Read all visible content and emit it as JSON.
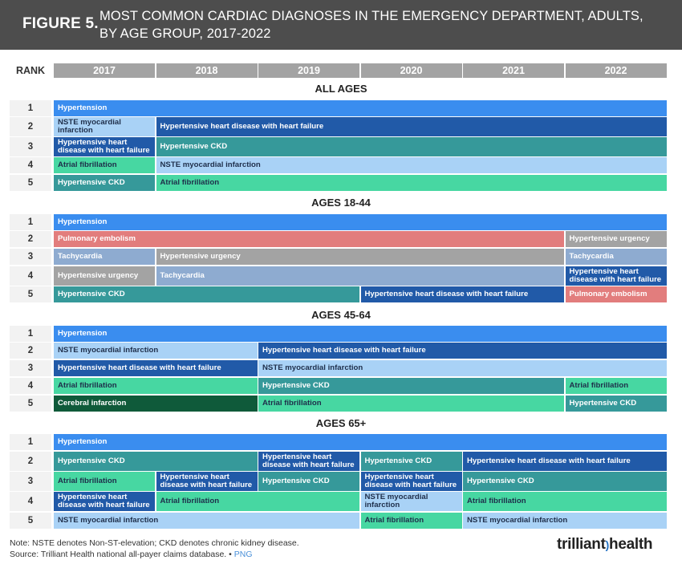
{
  "header": {
    "figure_label": "FIGURE 5.",
    "title": "MOST COMMON CARDIAC DIAGNOSES IN THE EMERGENCY DEPARTMENT, ADULTS, BY AGE GROUP, 2017-2022"
  },
  "rank_label": "RANK",
  "colors": {
    "Hypertension": "#3a8def",
    "Hypertensive heart disease with heart failure": "#215aa8",
    "Hypertensive CKD": "#36999a",
    "Atrial fibrillation": "#47d7a2",
    "NSTE myocardial infarction": "#a9d2f6",
    "Pulmonary embolism": "#e27d7d",
    "Hypertensive urgency": "#a3a3a3",
    "Tachycardia": "#8eabd0",
    "Cerebral infarction": "#0f5a3a"
  },
  "dark_text_labels": [
    "Atrial fibrillation",
    "NSTE myocardial infarction"
  ],
  "chart_data": {
    "type": "table",
    "years": [
      "2017",
      "2018",
      "2019",
      "2020",
      "2021",
      "2022"
    ],
    "sections": [
      {
        "title": "ALL AGES",
        "rows": [
          {
            "rank": "1",
            "segments": [
              {
                "label": "Hypertension",
                "start": 0,
                "span": 6
              }
            ]
          },
          {
            "rank": "2",
            "segments": [
              {
                "label": "NSTE myocardial infarction",
                "start": 0,
                "span": 1
              },
              {
                "label": "Hypertensive heart disease with heart failure",
                "start": 1,
                "span": 5
              }
            ]
          },
          {
            "rank": "3",
            "segments": [
              {
                "label": "Hypertensive heart disease with heart failure",
                "start": 0,
                "span": 1
              },
              {
                "label": "Hypertensive CKD",
                "start": 1,
                "span": 5
              }
            ]
          },
          {
            "rank": "4",
            "segments": [
              {
                "label": "Atrial fibrillation",
                "start": 0,
                "span": 1
              },
              {
                "label": "NSTE myocardial infarction",
                "start": 1,
                "span": 5
              }
            ]
          },
          {
            "rank": "5",
            "segments": [
              {
                "label": "Hypertensive CKD",
                "start": 0,
                "span": 1
              },
              {
                "label": "Atrial fibrillation",
                "start": 1,
                "span": 5
              }
            ]
          }
        ]
      },
      {
        "title": "AGES 18-44",
        "rows": [
          {
            "rank": "1",
            "segments": [
              {
                "label": "Hypertension",
                "start": 0,
                "span": 6
              }
            ]
          },
          {
            "rank": "2",
            "segments": [
              {
                "label": "Pulmonary embolism",
                "start": 0,
                "span": 5
              },
              {
                "label": "Hypertensive urgency",
                "start": 5,
                "span": 1
              }
            ]
          },
          {
            "rank": "3",
            "segments": [
              {
                "label": "Tachycardia",
                "start": 0,
                "span": 1
              },
              {
                "label": "Hypertensive urgency",
                "start": 1,
                "span": 4
              },
              {
                "label": "Tachycardia",
                "start": 5,
                "span": 1
              }
            ]
          },
          {
            "rank": "4",
            "segments": [
              {
                "label": "Hypertensive urgency",
                "start": 0,
                "span": 1
              },
              {
                "label": "Tachycardia",
                "start": 1,
                "span": 4
              },
              {
                "label": "Hypertensive heart disease with heart failure",
                "start": 5,
                "span": 1
              }
            ]
          },
          {
            "rank": "5",
            "segments": [
              {
                "label": "Hypertensive CKD",
                "start": 0,
                "span": 3
              },
              {
                "label": "Hypertensive heart disease with heart failure",
                "start": 3,
                "span": 2
              },
              {
                "label": "Pulmonary embolism",
                "start": 5,
                "span": 1
              }
            ]
          }
        ]
      },
      {
        "title": "AGES 45-64",
        "rows": [
          {
            "rank": "1",
            "segments": [
              {
                "label": "Hypertension",
                "start": 0,
                "span": 6
              }
            ]
          },
          {
            "rank": "2",
            "segments": [
              {
                "label": "NSTE myocardial infarction",
                "start": 0,
                "span": 2
              },
              {
                "label": "Hypertensive heart disease with heart failure",
                "start": 2,
                "span": 4
              }
            ]
          },
          {
            "rank": "3",
            "segments": [
              {
                "label": "Hypertensive heart disease with heart failure",
                "start": 0,
                "span": 2
              },
              {
                "label": "NSTE myocardial infarction",
                "start": 2,
                "span": 4
              }
            ]
          },
          {
            "rank": "4",
            "segments": [
              {
                "label": "Atrial fibrillation",
                "start": 0,
                "span": 2
              },
              {
                "label": "Hypertensive CKD",
                "start": 2,
                "span": 3
              },
              {
                "label": "Atrial fibrillation",
                "start": 5,
                "span": 1
              }
            ]
          },
          {
            "rank": "5",
            "segments": [
              {
                "label": "Cerebral infarction",
                "start": 0,
                "span": 2
              },
              {
                "label": "Atrial fibrillation",
                "start": 2,
                "span": 3
              },
              {
                "label": "Hypertensive CKD",
                "start": 5,
                "span": 1
              }
            ]
          }
        ]
      },
      {
        "title": "AGES 65+",
        "rows": [
          {
            "rank": "1",
            "segments": [
              {
                "label": "Hypertension",
                "start": 0,
                "span": 6
              }
            ]
          },
          {
            "rank": "2",
            "segments": [
              {
                "label": "Hypertensive CKD",
                "start": 0,
                "span": 2
              },
              {
                "label": "Hypertensive heart disease with heart failure",
                "start": 2,
                "span": 1
              },
              {
                "label": "Hypertensive CKD",
                "start": 3,
                "span": 1
              },
              {
                "label": "Hypertensive heart disease with heart failure",
                "start": 4,
                "span": 2
              }
            ]
          },
          {
            "rank": "3",
            "segments": [
              {
                "label": "Atrial fibrillation",
                "start": 0,
                "span": 1
              },
              {
                "label": "Hypertensive heart disease with heart failure",
                "start": 1,
                "span": 1
              },
              {
                "label": "Hypertensive CKD",
                "start": 2,
                "span": 1
              },
              {
                "label": "Hypertensive heart disease with heart failure",
                "start": 3,
                "span": 1
              },
              {
                "label": "Hypertensive CKD",
                "start": 4,
                "span": 2
              }
            ]
          },
          {
            "rank": "4",
            "segments": [
              {
                "label": "Hypertensive heart disease with heart failure",
                "start": 0,
                "span": 1
              },
              {
                "label": "Atrial fibrillation",
                "start": 1,
                "span": 2
              },
              {
                "label": "NSTE myocardial infarction",
                "start": 3,
                "span": 1
              },
              {
                "label": "Atrial fibrillation",
                "start": 4,
                "span": 2
              }
            ]
          },
          {
            "rank": "5",
            "segments": [
              {
                "label": "NSTE myocardial infarction",
                "start": 0,
                "span": 3
              },
              {
                "label": "Atrial fibrillation",
                "start": 3,
                "span": 1
              },
              {
                "label": "NSTE myocardial infarction",
                "start": 4,
                "span": 2
              }
            ]
          }
        ]
      }
    ]
  },
  "footer": {
    "note": "Note: NSTE denotes Non-ST-elevation; CKD denotes chronic kidney disease.",
    "source": "Source: Trilliant Health national all-payer claims database.",
    "separator": " • ",
    "png_link": "PNG",
    "logo_text_left": "trilliant",
    "logo_text_right": "health"
  }
}
